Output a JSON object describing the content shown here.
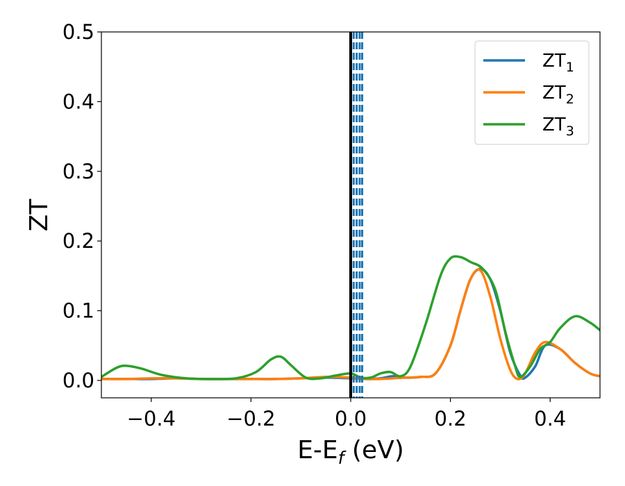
{
  "chart_data": {
    "type": "line",
    "xlabel": "E-E",
    "xlabel_sub": "f",
    "xlabel_unit": " (eV)",
    "ylabel": "ZT",
    "xlim": [
      -0.5,
      0.5
    ],
    "ylim": [
      -0.025,
      0.5
    ],
    "xticks": [
      -0.4,
      -0.2,
      0.0,
      0.2,
      0.4
    ],
    "xtick_labels": [
      "−0.4",
      "−0.2",
      "0.0",
      "0.2",
      "0.4"
    ],
    "yticks": [
      0.0,
      0.1,
      0.2,
      0.3,
      0.4,
      0.5
    ],
    "ytick_labels": [
      "0.0",
      "0.1",
      "0.2",
      "0.3",
      "0.4",
      "0.5"
    ],
    "grid": false,
    "legend_position": "top-right",
    "vertical_lines": [
      {
        "x": 0.0,
        "style": "solid",
        "color": "#000000"
      },
      {
        "x": 0.006,
        "style": "dashed",
        "color": "#1f77b4"
      },
      {
        "x": 0.012,
        "style": "dashed",
        "color": "#1f77b4"
      },
      {
        "x": 0.018,
        "style": "dashed",
        "color": "#1f77b4"
      },
      {
        "x": 0.023,
        "style": "dashed",
        "color": "#1f77b4"
      }
    ],
    "series": [
      {
        "name": "ZT",
        "name_sub": "1",
        "color": "#1f77b4",
        "x": [
          -0.5,
          -0.45,
          -0.4,
          -0.35,
          -0.3,
          -0.25,
          -0.2,
          -0.15,
          -0.1,
          -0.05,
          0.0,
          0.03,
          0.06,
          0.085,
          0.11,
          0.14,
          0.17,
          0.2,
          0.22,
          0.24,
          0.26,
          0.28,
          0.3,
          0.32,
          0.34,
          0.35,
          0.37,
          0.39,
          0.42,
          0.45,
          0.48,
          0.5
        ],
        "y": [
          0.002,
          0.002,
          0.002,
          0.003,
          0.002,
          0.002,
          0.002,
          0.002,
          0.003,
          0.004,
          0.003,
          0.002,
          0.003,
          0.006,
          0.004,
          0.005,
          0.01,
          0.05,
          0.1,
          0.145,
          0.16,
          0.145,
          0.1,
          0.04,
          0.007,
          0.004,
          0.02,
          0.05,
          0.045,
          0.025,
          0.01,
          0.006
        ]
      },
      {
        "name": "ZT",
        "name_sub": "2",
        "color": "#ff7f0e",
        "x": [
          -0.5,
          -0.45,
          -0.4,
          -0.35,
          -0.3,
          -0.25,
          -0.2,
          -0.15,
          -0.1,
          -0.05,
          0.0,
          0.03,
          0.06,
          0.085,
          0.11,
          0.14,
          0.17,
          0.2,
          0.22,
          0.24,
          0.26,
          0.28,
          0.3,
          0.32,
          0.335,
          0.35,
          0.37,
          0.39,
          0.42,
          0.45,
          0.48,
          0.5
        ],
        "y": [
          0.002,
          0.002,
          0.003,
          0.003,
          0.002,
          0.002,
          0.002,
          0.002,
          0.003,
          0.005,
          0.004,
          0.002,
          0.002,
          0.003,
          0.004,
          0.005,
          0.01,
          0.05,
          0.1,
          0.145,
          0.158,
          0.12,
          0.06,
          0.015,
          0.002,
          0.01,
          0.04,
          0.055,
          0.045,
          0.025,
          0.01,
          0.006
        ]
      },
      {
        "name": "ZT",
        "name_sub": "3",
        "color": "#2ca02c",
        "x": [
          -0.5,
          -0.47,
          -0.45,
          -0.42,
          -0.38,
          -0.33,
          -0.28,
          -0.23,
          -0.19,
          -0.16,
          -0.14,
          -0.12,
          -0.09,
          -0.06,
          -0.03,
          0.0,
          0.02,
          0.04,
          0.06,
          0.08,
          0.1,
          0.12,
          0.15,
          0.18,
          0.2,
          0.22,
          0.24,
          0.265,
          0.29,
          0.31,
          0.33,
          0.34,
          0.36,
          0.38,
          0.4,
          0.42,
          0.45,
          0.48,
          0.5
        ],
        "y": [
          0.005,
          0.018,
          0.021,
          0.017,
          0.008,
          0.003,
          0.002,
          0.003,
          0.012,
          0.03,
          0.034,
          0.022,
          0.004,
          0.003,
          0.007,
          0.01,
          0.004,
          0.004,
          0.01,
          0.012,
          0.006,
          0.02,
          0.08,
          0.15,
          0.175,
          0.177,
          0.17,
          0.16,
          0.13,
          0.07,
          0.02,
          0.005,
          0.02,
          0.045,
          0.055,
          0.075,
          0.092,
          0.083,
          0.072
        ]
      }
    ]
  }
}
